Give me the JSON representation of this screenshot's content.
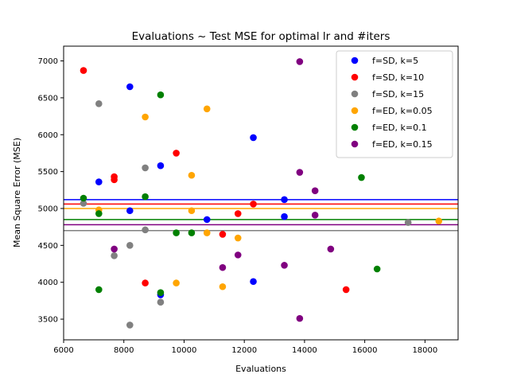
{
  "chart_data": {
    "type": "scatter",
    "title": "Evaluations ~ Test MSE for optimal lr and #iters",
    "xlabel": "Evaluations",
    "ylabel": "Mean Square Error (MSE)",
    "xlim": [
      6000,
      19100
    ],
    "ylim": [
      3220,
      7200
    ],
    "xticks": [
      6000,
      8000,
      10000,
      12000,
      14000,
      16000,
      18000
    ],
    "yticks": [
      3500,
      4000,
      4500,
      5000,
      5500,
      6000,
      6500,
      7000
    ],
    "grid": false,
    "legend_position": "top-right",
    "series": [
      {
        "name": "f=SD, k=5",
        "color": "#0000ff",
        "mean_line": 5120,
        "points": [
          [
            7170,
            5360
          ],
          [
            8200,
            6650
          ],
          [
            8200,
            4970
          ],
          [
            9220,
            5580
          ],
          [
            9220,
            3830
          ],
          [
            10760,
            4850
          ],
          [
            12300,
            5960
          ],
          [
            12300,
            4010
          ],
          [
            13330,
            5120
          ],
          [
            13330,
            4890
          ]
        ]
      },
      {
        "name": "f=SD, k=10",
        "color": "#ff0000",
        "mean_line": 5060,
        "points": [
          [
            6660,
            6870
          ],
          [
            7680,
            5430
          ],
          [
            7680,
            5390
          ],
          [
            8710,
            3990
          ],
          [
            9740,
            5750
          ],
          [
            11790,
            4930
          ],
          [
            12300,
            5060
          ],
          [
            11280,
            4650
          ],
          [
            15380,
            3900
          ]
        ]
      },
      {
        "name": "f=SD, k=15",
        "color": "#808080",
        "mean_line": 4700,
        "points": [
          [
            6660,
            5070
          ],
          [
            7170,
            6420
          ],
          [
            7680,
            4360
          ],
          [
            8200,
            4500
          ],
          [
            8200,
            3420
          ],
          [
            8710,
            5550
          ],
          [
            8710,
            4710
          ],
          [
            9220,
            3730
          ],
          [
            17440,
            4810
          ]
        ]
      },
      {
        "name": "f=ED, k=0.05",
        "color": "#ffa500",
        "mean_line": 5000,
        "points": [
          [
            7170,
            4980
          ],
          [
            8710,
            6240
          ],
          [
            9740,
            3990
          ],
          [
            10250,
            5450
          ],
          [
            10250,
            4970
          ],
          [
            10760,
            6350
          ],
          [
            10760,
            4670
          ],
          [
            11280,
            3940
          ],
          [
            11790,
            4600
          ],
          [
            18460,
            4830
          ]
        ]
      },
      {
        "name": "f=ED, k=0.1",
        "color": "#008000",
        "mean_line": 4850,
        "points": [
          [
            6660,
            5140
          ],
          [
            7170,
            4930
          ],
          [
            7170,
            3900
          ],
          [
            8710,
            5160
          ],
          [
            9220,
            6540
          ],
          [
            9220,
            3860
          ],
          [
            9740,
            4670
          ],
          [
            10250,
            4670
          ],
          [
            15890,
            5420
          ],
          [
            16410,
            4180
          ]
        ]
      },
      {
        "name": "f=ED, k=0.15",
        "color": "#800080",
        "mean_line": 4780,
        "points": [
          [
            7680,
            4450
          ],
          [
            11280,
            4200
          ],
          [
            11790,
            4370
          ],
          [
            13330,
            4230
          ],
          [
            13840,
            6990
          ],
          [
            13840,
            5490
          ],
          [
            13840,
            3510
          ],
          [
            14350,
            5240
          ],
          [
            14350,
            4910
          ],
          [
            14870,
            4450
          ]
        ]
      }
    ]
  }
}
